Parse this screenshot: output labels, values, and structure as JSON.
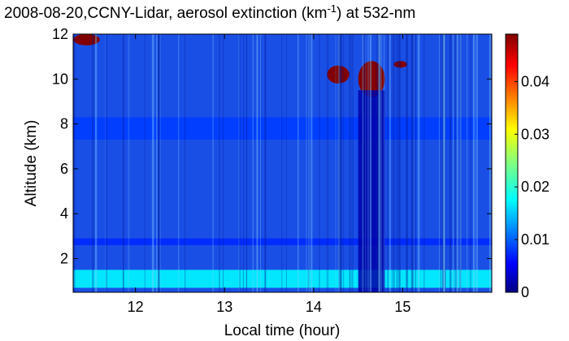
{
  "chart_data": {
    "type": "heatmap",
    "title": {
      "prefix": "2008-08-20,CCNY-Lidar, aerosol extinction (km",
      "superscript": "-1",
      "suffix": ") at 532-nm"
    },
    "xlabel": "Local time (hour)",
    "ylabel": "Altitude (km)",
    "xlim": [
      11.3,
      16.0
    ],
    "ylim": [
      0.5,
      12.0
    ],
    "x_ticks": [
      12,
      13,
      14,
      15
    ],
    "y_ticks": [
      2,
      4,
      6,
      8,
      10,
      12
    ],
    "colorbar": {
      "colormap": "jet",
      "range": [
        0,
        0.049
      ],
      "ticks": [
        0,
        0.01,
        0.02,
        0.03,
        0.04
      ],
      "tick_labels": [
        "0",
        "0.01",
        "0.02",
        "0.03",
        "0.04"
      ]
    },
    "features": [
      {
        "kind": "boundary-layer",
        "x": [
          11.3,
          16.0
        ],
        "y": [
          0.7,
          1.5
        ],
        "value": 0.018
      },
      {
        "kind": "aerosol-layer",
        "x": [
          11.3,
          16.0
        ],
        "y": [
          2.6,
          2.9
        ],
        "value": 0.008
      },
      {
        "kind": "aerosol-layer",
        "x": [
          11.3,
          16.0
        ],
        "y": [
          7.3,
          8.3
        ],
        "value": 0.009
      },
      {
        "kind": "cloud",
        "x": [
          11.3,
          11.6
        ],
        "y": [
          11.5,
          12.0
        ],
        "value": 0.049
      },
      {
        "kind": "cloud",
        "x": [
          14.15,
          14.4
        ],
        "y": [
          9.8,
          10.6
        ],
        "value": 0.049
      },
      {
        "kind": "cloud",
        "x": [
          14.5,
          14.8
        ],
        "y": [
          9.2,
          10.8
        ],
        "value": 0.049
      },
      {
        "kind": "cloud",
        "x": [
          14.9,
          15.05
        ],
        "y": [
          10.5,
          10.8
        ],
        "value": 0.049
      },
      {
        "kind": "attenuated-region",
        "x": [
          14.5,
          14.8
        ],
        "y": [
          0.5,
          9.5
        ],
        "value": 0.002
      }
    ]
  }
}
